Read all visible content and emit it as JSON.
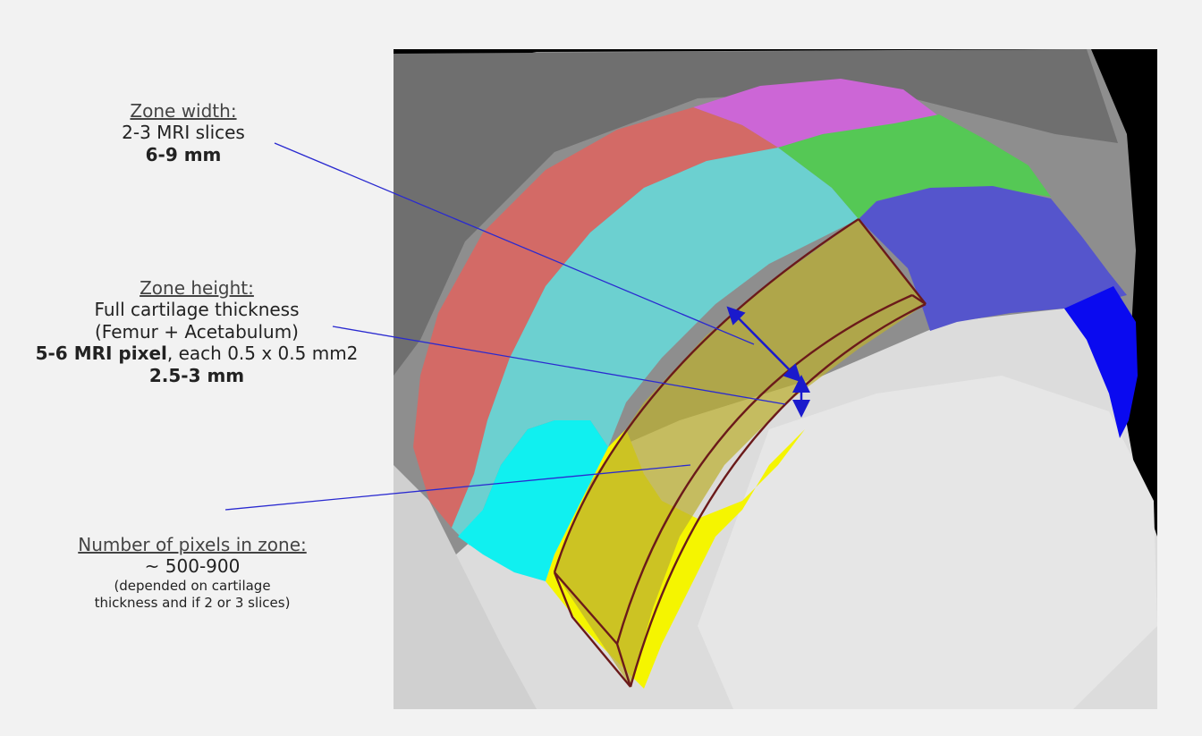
{
  "zone_width": {
    "heading": "Zone width:",
    "line1": "2-3 MRI slices",
    "line2": "6-9 mm"
  },
  "zone_height": {
    "heading": "Zone height:",
    "line1": "Full cartilage thickness",
    "line2": "(Femur + Acetabulum)",
    "line3_bold": "5-6 MRI pixel",
    "line3_rest": ", each 0.5 x 0.5 mm2",
    "line4": "2.5-3 mm"
  },
  "zone_pixels": {
    "heading": "Number of pixels in zone:",
    "line1": "~ 500-900",
    "note1": "(depended on cartilage",
    "note2": "thickness and if 2 or 3 slices)"
  },
  "colors": {
    "background": "#f2f2f2",
    "leader_line": "#2a2ad0",
    "dimension_arrow": "#1a1acc",
    "zone_outline": "#6b1a1a",
    "region_red": "#d36a66",
    "region_magenta": "#cc66d6",
    "region_cyan": "#6cd0d0",
    "region_bright_cyan": "#10f0f0",
    "region_green": "#55c855",
    "region_blue": "#5555cc",
    "region_bright_blue": "#0a0af0",
    "region_yellow": "#f5f500",
    "zone_fill": "#c8c040"
  }
}
